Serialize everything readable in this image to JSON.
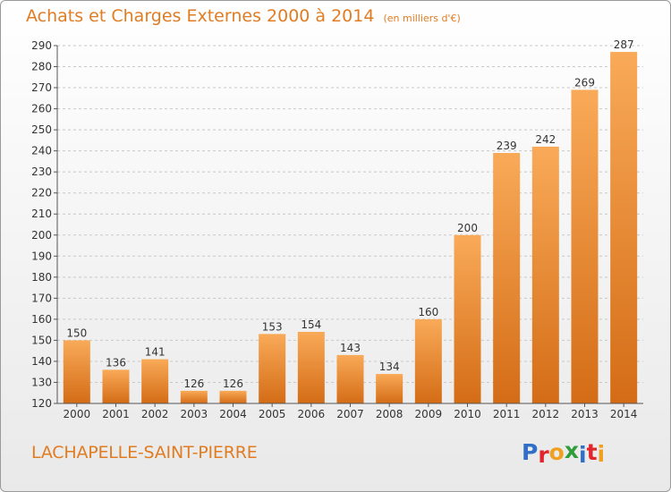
{
  "header": {
    "title": "Achats et Charges Externes 2000 à 2014",
    "subtitle": "(en milliers d'€)"
  },
  "footer": {
    "commune": "LACHAPELLE-SAINT-PIERRE",
    "logo": "Proxiti"
  },
  "colors": {
    "accent": "#e07c22",
    "bar_light": "#f7a552",
    "bar_dark": "#d9701a",
    "grid": "#c8c8c8",
    "logo_letters": [
      "#2f6fc7",
      "#e0252b",
      "#f0a020",
      "#2f9e3a",
      "#2f6fc7",
      "#e0252b",
      "#f0a020"
    ]
  },
  "chart_data": {
    "type": "bar",
    "title": "Achats et Charges Externes 2000 à 2014",
    "subtitle": "(en milliers d'€)",
    "categories": [
      "2000",
      "2001",
      "2002",
      "2003",
      "2004",
      "2005",
      "2006",
      "2007",
      "2008",
      "2009",
      "2010",
      "2011",
      "2012",
      "2013",
      "2014"
    ],
    "values": [
      150,
      136,
      141,
      126,
      126,
      153,
      154,
      143,
      134,
      160,
      200,
      239,
      242,
      269,
      287
    ],
    "ylim": [
      120,
      290
    ],
    "yticks": [
      120,
      130,
      140,
      150,
      160,
      170,
      180,
      190,
      200,
      210,
      220,
      230,
      240,
      250,
      260,
      270,
      280,
      290
    ],
    "grid": true,
    "xlabel": "",
    "ylabel": ""
  }
}
